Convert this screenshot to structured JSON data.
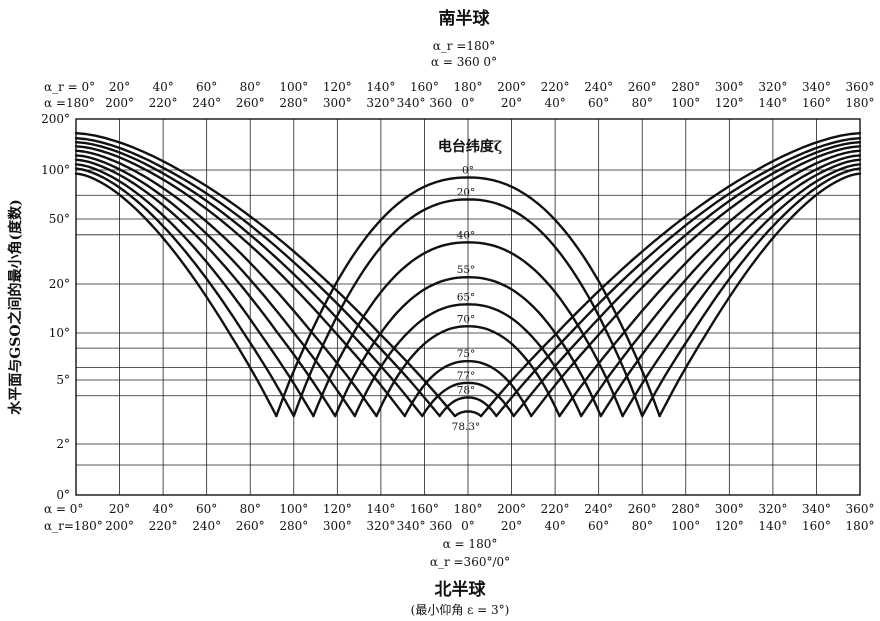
{
  "chart_data": {
    "type": "line",
    "top_title": "南半球",
    "top_annotation": {
      "line1": "α_r =180°",
      "line2": "α = 360  0°"
    },
    "top_axis_rows": [
      [
        "α_r = 0°",
        "20°",
        "40°",
        "60°",
        "80°",
        "100°",
        "120°",
        "140°",
        "160°",
        "180°",
        "200°",
        "220°",
        "240°",
        "260°",
        "280°",
        "300°",
        "320°",
        "340°",
        "360°"
      ],
      [
        "α =180°",
        "200°",
        "220°",
        "240°",
        "260°",
        "280°",
        "300°",
        "320°",
        "340° 360",
        "0°",
        "20°",
        "40°",
        "60°",
        "80°",
        "100°",
        "120°",
        "140°",
        "160°",
        "180°"
      ]
    ],
    "bottom_axis_rows": [
      [
        "α = 0°",
        "20°",
        "40°",
        "60°",
        "80°",
        "100°",
        "120°",
        "140°",
        "160°",
        "180°",
        "200°",
        "220°",
        "240°",
        "260°",
        "280°",
        "300°",
        "320°",
        "340°",
        "360°"
      ],
      [
        "α_r=180°",
        "200°",
        "220°",
        "240°",
        "260°",
        "280°",
        "300°",
        "320°",
        "340° 360",
        "0°",
        "20°",
        "40°",
        "60°",
        "80°",
        "100°",
        "120°",
        "140°",
        "160°",
        "180°"
      ]
    ],
    "bottom_annotation": {
      "line1": "α = 180°",
      "line2": "α_r =360°/0°"
    },
    "bottom_title": "北半球",
    "bottom_subtitle": "(最小仰角 ε = 3°)",
    "ylabel": "水平面与GSO之间的最小角(度数)",
    "legend_title": "电台纬度ζ",
    "xlim": [
      0,
      360
    ],
    "x_ticks": [
      0,
      20,
      40,
      60,
      80,
      100,
      120,
      140,
      160,
      180,
      200,
      220,
      240,
      260,
      280,
      300,
      320,
      340,
      360
    ],
    "y_ticks": [
      {
        "label": "200°",
        "value": 200
      },
      {
        "label": "100°",
        "value": 100
      },
      {
        "label": "50°",
        "value": 50
      },
      {
        "label": "20°",
        "value": 20
      },
      {
        "label": "10°",
        "value": 10
      },
      {
        "label": "5°",
        "value": 5
      },
      {
        "label": "2°",
        "value": 2
      },
      {
        "label": "0°",
        "value": 0
      }
    ],
    "y_minor_grid": [
      70,
      40,
      8,
      6,
      4,
      1.5
    ],
    "floor_value": 3,
    "series": [
      {
        "name": "0°",
        "peak": 90
      },
      {
        "name": "20°",
        "peak": 66
      },
      {
        "name": "40°",
        "peak": 36
      },
      {
        "name": "55°",
        "peak": 22
      },
      {
        "name": "65°",
        "peak": 15
      },
      {
        "name": "70°",
        "peak": 11
      },
      {
        "name": "75°",
        "peak": 6.6
      },
      {
        "name": "77°",
        "peak": 4.8
      },
      {
        "name": "78°",
        "peak": 3.9
      },
      {
        "name": "78.3°",
        "peak": 3.2
      }
    ],
    "series_lower_cutoff": [
      92,
      100,
      109,
      119,
      128,
      138,
      151,
      159,
      167,
      174
    ],
    "series_upper_cutoff": [
      268,
      260,
      251,
      241,
      232,
      222,
      209,
      201,
      193,
      186
    ],
    "series_edge_value": [
      95,
      102,
      108,
      115,
      122,
      130,
      138,
      146,
      154,
      165
    ]
  }
}
